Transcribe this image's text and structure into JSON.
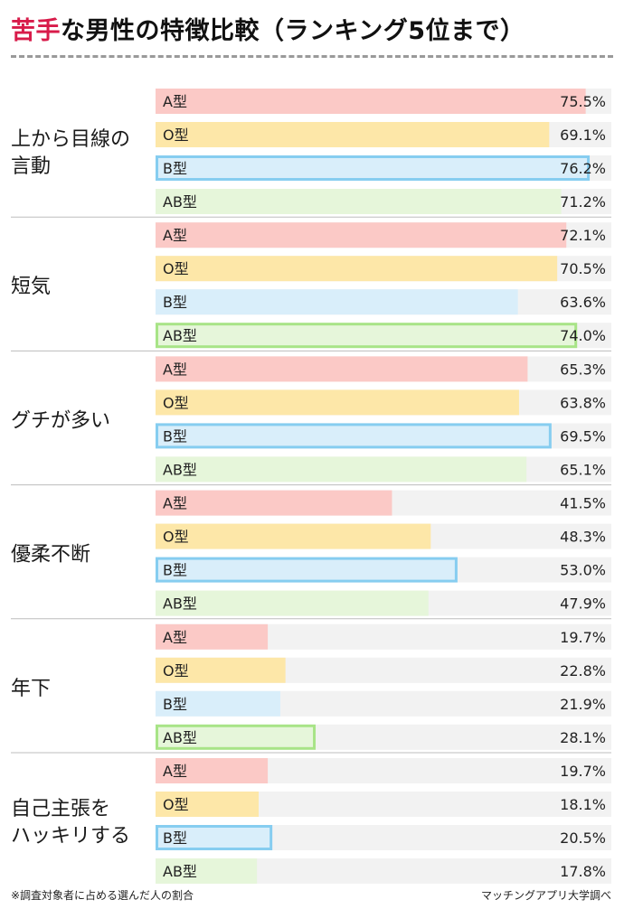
{
  "header": {
    "title_accent": "苦手",
    "title_rest": "な男性の特徴比較（ランキング5位まで）"
  },
  "footer": {
    "note": "※調査対象者に占める選んだ人の割合",
    "source": "マッチングアプリ大学調べ"
  },
  "colors": {
    "track": "#f2f2f2",
    "A": "#fbc9c6",
    "O": "#fde7a8",
    "B": "#d9eefa",
    "AB": "#e6f6da",
    "B_outline": "#86cdf0",
    "AB_outline": "#a8e487",
    "divider": "#bdbdbd"
  },
  "chart_data": {
    "type": "bar",
    "orientation": "horizontal",
    "unit": "%",
    "xlim": [
      0,
      80
    ],
    "grid": false,
    "series_labels": [
      "A型",
      "O型",
      "B型",
      "AB型"
    ],
    "groups": [
      {
        "label_lines": [
          "上から目線の",
          "言動"
        ],
        "values": [
          75.5,
          69.1,
          76.2,
          71.2
        ],
        "value_labels": [
          "75.5%",
          "69.1%",
          "76.2%",
          "71.2%"
        ],
        "highlight": 2
      },
      {
        "label_lines": [
          "短気"
        ],
        "values": [
          72.1,
          70.5,
          63.6,
          74.0
        ],
        "value_labels": [
          "72.1%",
          "70.5%",
          "63.6%",
          "74.0%"
        ],
        "highlight": 3
      },
      {
        "label_lines": [
          "グチが多い"
        ],
        "values": [
          65.3,
          63.8,
          69.5,
          65.1
        ],
        "value_labels": [
          "65.3%",
          "63.8%",
          "69.5%",
          "65.1%"
        ],
        "highlight": 2
      },
      {
        "label_lines": [
          "優柔不断"
        ],
        "values": [
          41.5,
          48.3,
          53.0,
          47.9
        ],
        "value_labels": [
          "41.5%",
          "48.3%",
          "53.0%",
          "47.9%"
        ],
        "highlight": 2
      },
      {
        "label_lines": [
          "年下"
        ],
        "values": [
          19.7,
          22.8,
          21.9,
          28.1
        ],
        "value_labels": [
          "19.7%",
          "22.8%",
          "21.9%",
          "28.1%"
        ],
        "highlight": 3
      },
      {
        "label_lines": [
          "自己主張を",
          "ハッキリする"
        ],
        "values": [
          19.7,
          18.1,
          20.5,
          17.8
        ],
        "value_labels": [
          "19.7%",
          "18.1%",
          "20.5%",
          "17.8%"
        ],
        "highlight": 2
      }
    ]
  }
}
